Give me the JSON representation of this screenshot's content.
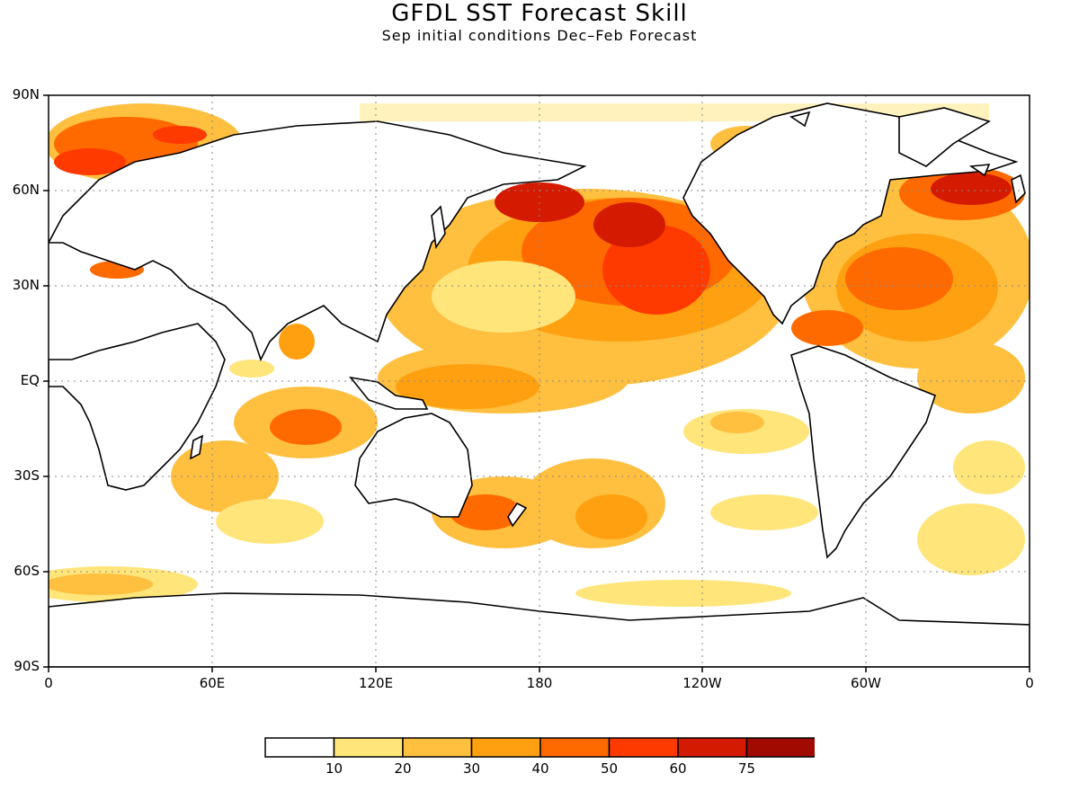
{
  "title": "GFDL SST Forecast Skill",
  "subtitle": "Sep initial conditions  Dec–Feb Forecast",
  "lat_labels": [
    "90N",
    "60N",
    "30N",
    "EQ",
    "30S",
    "60S",
    "90S"
  ],
  "lon_labels": [
    "0",
    "60E",
    "120E",
    "180",
    "120W",
    "60W",
    "0"
  ],
  "colorbar": {
    "colors": [
      "#ffffff",
      "#ffe57a",
      "#ffbf3f",
      "#ffa010",
      "#ff6a00",
      "#ff3a00",
      "#d41a00",
      "#a00a00"
    ],
    "labels": [
      "10",
      "20",
      "30",
      "40",
      "50",
      "60",
      "75"
    ]
  }
}
